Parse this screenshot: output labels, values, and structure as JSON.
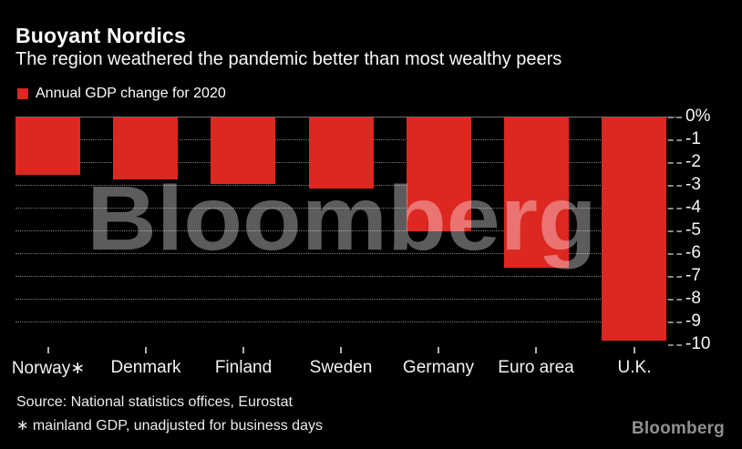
{
  "header": {
    "title": "Buoyant Nordics",
    "subtitle": "The region weathered the pandemic better than most wealthy peers"
  },
  "legend": {
    "label": "Annual GDP change for 2020",
    "swatch_color": "#dd2721"
  },
  "chart_data": {
    "type": "bar",
    "categories": [
      "Norway∗",
      "Denmark",
      "Finland",
      "Sweden",
      "Germany",
      "Euro area",
      "U.K."
    ],
    "values": [
      -2.5,
      -2.7,
      -2.9,
      -3.1,
      -5.0,
      -6.6,
      -9.8
    ],
    "series_name": "Annual GDP change for 2020",
    "title": "Buoyant Nordics",
    "subtitle": "The region weathered the pandemic better than most wealthy peers",
    "xlabel": "",
    "ylabel": "",
    "unit": "%",
    "ylim": [
      -10,
      0
    ],
    "yticks": [
      "0%",
      "-1",
      "-2",
      "-3",
      "-4",
      "-5",
      "-6",
      "-7",
      "-8",
      "-9",
      "-10"
    ],
    "bar_color": "#dd2721",
    "grid": "dotted horizontal gridlines at each integer",
    "legend_position": "top-left",
    "watermark": "Bloomberg"
  },
  "footer": {
    "source": "Source: National statistics offices, Eurostat",
    "note": "∗ mainland GDP, unadjusted for business days",
    "brand": "Bloomberg"
  }
}
